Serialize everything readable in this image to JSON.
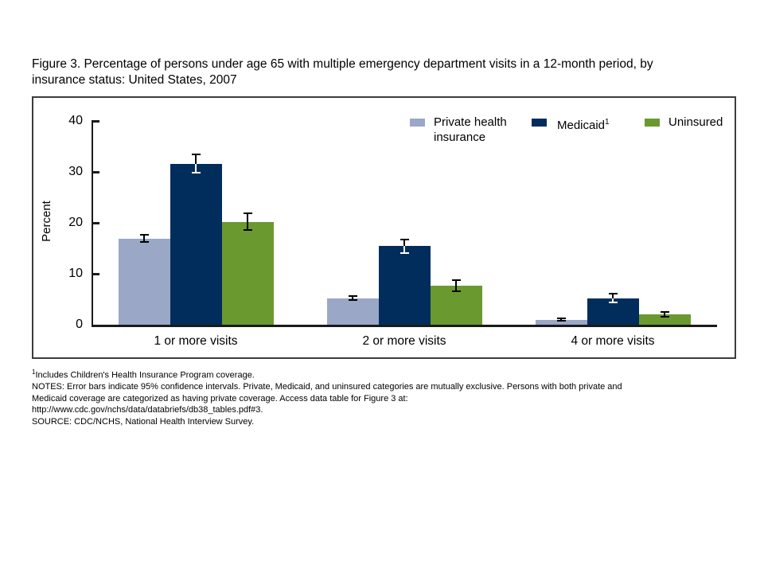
{
  "page": {
    "title_line1": "Figure 3. Percentage of persons under age 65 with multiple emergency department visits in a 12-month period, by",
    "title_line2": "insurance status: United States, 2007"
  },
  "chart_data": {
    "type": "bar",
    "title": "Figure 3. Percentage of persons under age 65 with multiple emergency department visits in a 12-month period, by insurance status: United States, 2007",
    "categories": [
      "1 or more visits",
      "2 or more visits",
      "4 or more visits"
    ],
    "series": [
      {
        "name": "Private health insurance",
        "color": "#9aa7c7",
        "dark": false,
        "values": [
          16.9,
          5.2,
          1.0
        ],
        "ci": [
          0.7,
          0.4,
          0.25
        ]
      },
      {
        "name": "Medicaid",
        "sup": "1",
        "color": "#002d5c",
        "dark": true,
        "values": [
          31.6,
          15.4,
          5.2
        ],
        "ci": [
          1.8,
          1.3,
          0.9
        ]
      },
      {
        "name": "Uninsured",
        "color": "#6a9a2f",
        "dark": false,
        "values": [
          20.2,
          7.6,
          2.0
        ],
        "ci": [
          1.6,
          1.1,
          0.5
        ]
      }
    ],
    "xlabel": "",
    "ylabel": "Percent",
    "ylim": [
      0,
      40
    ],
    "yticks": [
      0,
      10,
      20,
      30,
      40
    ],
    "error_bars": "95% confidence intervals",
    "legend_position": "top-right-inside",
    "grid": false
  },
  "footnotes": {
    "fn1_sup": "1",
    "fn1_text": "Includes Children's Health Insurance Program coverage.",
    "lines": [
      "NOTES: Error bars indicate 95% confidence intervals. Private, Medicaid, and uninsured categories are mutually exclusive. Persons with both private and",
      "Medicaid coverage are categorized as having private coverage. Access data table for Figure 3 at:",
      "http://www.cdc.gov/nchs/data/databriefs/db38_tables.pdf#3.",
      "SOURCE: CDC/NCHS, National Health Interview Survey."
    ]
  }
}
